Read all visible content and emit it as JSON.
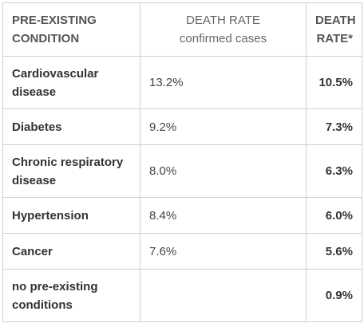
{
  "header": {
    "condition_line1": "PRE-EXISTING",
    "condition_line2": "CONDITION",
    "rate_confirmed_line1": "DEATH RATE",
    "rate_confirmed_line2": "confirmed cases",
    "rate_all_line1": "DEATH",
    "rate_all_line2": "RATE*"
  },
  "rows": [
    {
      "condition_line1": "Cardiovascular",
      "condition_line2": "disease",
      "rate_confirmed": "13.2%",
      "rate_all": "10.5%"
    },
    {
      "condition_line1": "Diabetes",
      "condition_line2": "",
      "rate_confirmed": "9.2%",
      "rate_all": "7.3%"
    },
    {
      "condition_line1": "Chronic respiratory",
      "condition_line2": "disease",
      "rate_confirmed": "8.0%",
      "rate_all": "6.3%"
    },
    {
      "condition_line1": "Hypertension",
      "condition_line2": "",
      "rate_confirmed": "8.4%",
      "rate_all": "6.0%"
    },
    {
      "condition_line1": "Cancer",
      "condition_line2": "",
      "rate_confirmed": "7.6%",
      "rate_all": "5.6%"
    },
    {
      "condition_line1": "no pre-existing",
      "condition_line2": "conditions",
      "rate_confirmed": "",
      "rate_all": "0.9%"
    }
  ]
}
